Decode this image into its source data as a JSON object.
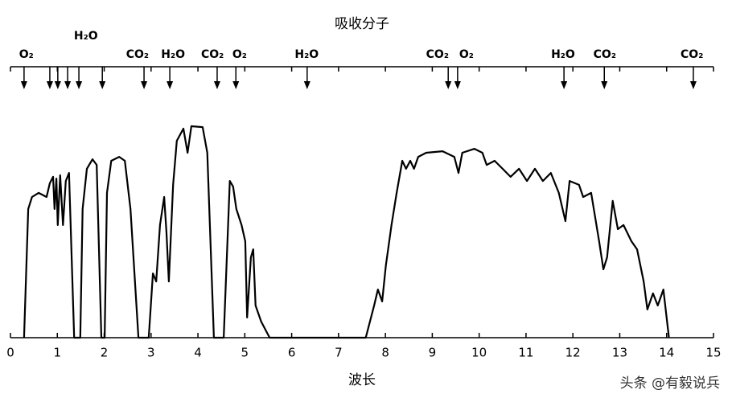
{
  "chart_data": {
    "type": "line",
    "title": "吸收分子",
    "x_label": "波长",
    "watermark": "头条 @有毅说兵",
    "color": "#000000",
    "xlim": [
      0,
      15
    ],
    "xticks": [
      0,
      1,
      2,
      3,
      4,
      5,
      6,
      7,
      8,
      9,
      10,
      11,
      12,
      13,
      14,
      15
    ],
    "ylim": [
      0,
      100
    ],
    "x": [
      0.29,
      0.38,
      0.46,
      0.6,
      0.77,
      0.84,
      0.91,
      0.94,
      0.98,
      1.01,
      1.06,
      1.12,
      1.18,
      1.25,
      1.36,
      1.49,
      1.54,
      1.63,
      1.75,
      1.84,
      1.94,
      2.01,
      2.06,
      2.15,
      2.32,
      2.44,
      2.56,
      2.73,
      2.95,
      3.04,
      3.11,
      3.19,
      3.28,
      3.33,
      3.38,
      3.47,
      3.55,
      3.69,
      3.78,
      3.86,
      4.1,
      4.2,
      4.34,
      4.55,
      4.68,
      4.75,
      4.82,
      4.93,
      5.01,
      5.05,
      5.13,
      5.18,
      5.23,
      5.35,
      5.53,
      7.58,
      7.76,
      7.84,
      7.93,
      8.01,
      8.13,
      8.24,
      8.36,
      8.44,
      8.53,
      8.61,
      8.7,
      8.87,
      9.22,
      9.47,
      9.56,
      9.64,
      9.9,
      10.07,
      10.16,
      10.33,
      10.5,
      10.67,
      10.85,
      11.02,
      11.19,
      11.36,
      11.53,
      11.7,
      11.84,
      11.93,
      12.13,
      12.22,
      12.39,
      12.56,
      12.65,
      12.73,
      12.85,
      12.96,
      13.08,
      13.25,
      13.37,
      13.51,
      13.59,
      13.71,
      13.81,
      13.93,
      14.05
    ],
    "values": [
      0,
      59.3,
      64.8,
      66.7,
      64.8,
      71.1,
      74.1,
      59.3,
      73.3,
      51.9,
      74.8,
      51.9,
      72.2,
      75.9,
      0,
      0,
      59.3,
      77.8,
      82.2,
      79.6,
      0,
      0,
      66.7,
      81.5,
      83.3,
      81.5,
      59.3,
      0,
      0,
      29.6,
      25.9,
      51.9,
      64.8,
      48.1,
      25.9,
      70.4,
      90.7,
      96.3,
      85.2,
      97.4,
      97.0,
      85.2,
      0,
      0,
      72.2,
      69.6,
      59.3,
      51.9,
      44.4,
      9.3,
      37.0,
      40.7,
      14.8,
      7.4,
      0,
      0,
      14.8,
      22.2,
      16.7,
      33.3,
      51.9,
      66.7,
      81.5,
      77.8,
      81.5,
      77.8,
      83.3,
      85.2,
      85.9,
      83.3,
      75.9,
      85.2,
      87.0,
      85.2,
      79.6,
      81.5,
      77.8,
      74.1,
      77.8,
      72.2,
      77.8,
      72.2,
      75.9,
      66.7,
      53.7,
      72.2,
      70.4,
      64.8,
      66.7,
      44.4,
      31.5,
      37.0,
      63.0,
      50.0,
      51.9,
      44.4,
      40.7,
      25.9,
      13.0,
      20.4,
      14.8,
      22.2,
      0
    ],
    "absorption_arrows": [
      0.29,
      0.84,
      1.01,
      1.22,
      1.46,
      1.96,
      2.85,
      3.4,
      4.41,
      4.81,
      6.33,
      9.34,
      9.54,
      11.81,
      12.67,
      14.57
    ],
    "molecule_labels": [
      {
        "text": "O₂",
        "x": 0.34
      },
      {
        "text": "CO₂",
        "x": 2.71
      },
      {
        "text": "H₂O",
        "x": 3.47
      },
      {
        "text": "CO₂",
        "x": 4.31
      },
      {
        "text": "O₂",
        "x": 4.89
      },
      {
        "text": "H₂O",
        "x": 6.32
      },
      {
        "text": "CO₂",
        "x": 9.11
      },
      {
        "text": "O₂",
        "x": 9.73
      },
      {
        "text": "H₂O",
        "x": 11.79
      },
      {
        "text": "CO₂",
        "x": 12.68
      },
      {
        "text": "CO₂",
        "x": 14.54
      }
    ],
    "upper_molecule_labels": [
      {
        "text": "H₂O",
        "x": 1.61
      }
    ]
  }
}
